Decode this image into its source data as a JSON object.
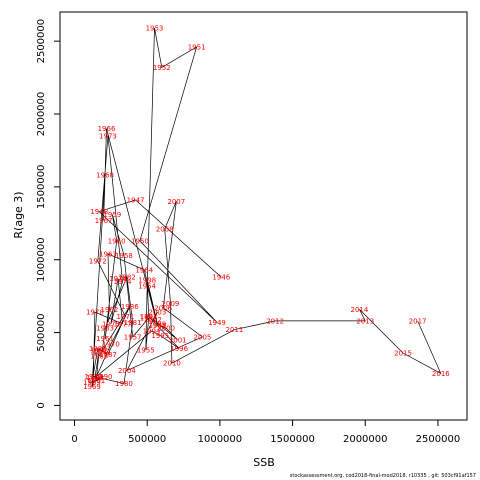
{
  "chart_data": {
    "type": "line",
    "xlabel": "SSB",
    "ylabel": "R(age 3)",
    "xlim": [
      -100000,
      2700000
    ],
    "ylim": [
      -100000,
      2700000
    ],
    "xticks": [
      0,
      500000,
      1000000,
      1500000,
      2000000,
      2500000
    ],
    "xtick_labels": [
      "0",
      "500000",
      "1000000",
      "1500000",
      "2000000",
      "2500000"
    ],
    "yticks": [
      0,
      500000,
      1000000,
      1500000,
      2000000,
      2500000
    ],
    "ytick_labels": [
      "0",
      "500000",
      "1000000",
      "1500000",
      "2000000",
      "2500000"
    ],
    "line_color": "#000000",
    "label_color": "#ff0000",
    "points": [
      {
        "year": "1946",
        "x": 1010000,
        "y": 880000
      },
      {
        "year": "1947",
        "x": 420000,
        "y": 1410000
      },
      {
        "year": "1948",
        "x": 170000,
        "y": 1330000
      },
      {
        "year": "1949",
        "x": 980000,
        "y": 570000
      },
      {
        "year": "1950",
        "x": 450000,
        "y": 1130000
      },
      {
        "year": "1951",
        "x": 840000,
        "y": 2460000
      },
      {
        "year": "1952",
        "x": 600000,
        "y": 2320000
      },
      {
        "year": "1953",
        "x": 550000,
        "y": 2590000
      },
      {
        "year": "1954",
        "x": 500000,
        "y": 820000
      },
      {
        "year": "1955",
        "x": 490000,
        "y": 380000
      },
      {
        "year": "1956",
        "x": 510000,
        "y": 600000
      },
      {
        "year": "1957",
        "x": 400000,
        "y": 470000
      },
      {
        "year": "1958",
        "x": 340000,
        "y": 1030000
      },
      {
        "year": "1959",
        "x": 260000,
        "y": 1310000
      },
      {
        "year": "1960",
        "x": 290000,
        "y": 1130000
      },
      {
        "year": "1961",
        "x": 210000,
        "y": 460000
      },
      {
        "year": "1962",
        "x": 240000,
        "y": 660000
      },
      {
        "year": "1963",
        "x": 230000,
        "y": 1040000
      },
      {
        "year": "1964",
        "x": 480000,
        "y": 930000
      },
      {
        "year": "1965",
        "x": 570000,
        "y": 550000
      },
      {
        "year": "1966",
        "x": 220000,
        "y": 1900000
      },
      {
        "year": "1967",
        "x": 200000,
        "y": 1270000
      },
      {
        "year": "1968",
        "x": 210000,
        "y": 1580000
      },
      {
        "year": "1969",
        "x": 120000,
        "y": 130000
      },
      {
        "year": "1970",
        "x": 250000,
        "y": 420000
      },
      {
        "year": "1971",
        "x": 350000,
        "y": 610000
      },
      {
        "year": "1972",
        "x": 160000,
        "y": 990000
      },
      {
        "year": "1973",
        "x": 230000,
        "y": 1850000
      },
      {
        "year": "1974",
        "x": 330000,
        "y": 850000
      },
      {
        "year": "1975",
        "x": 250000,
        "y": 560000
      },
      {
        "year": "1976",
        "x": 300000,
        "y": 870000
      },
      {
        "year": "1977",
        "x": 330000,
        "y": 560000
      },
      {
        "year": "1978",
        "x": 140000,
        "y": 640000
      },
      {
        "year": "1979",
        "x": 130000,
        "y": 200000
      },
      {
        "year": "1980",
        "x": 340000,
        "y": 150000
      },
      {
        "year": "1981",
        "x": 400000,
        "y": 570000
      },
      {
        "year": "1982",
        "x": 360000,
        "y": 880000
      },
      {
        "year": "1983",
        "x": 210000,
        "y": 530000
      },
      {
        "year": "1984",
        "x": 190000,
        "y": 370000
      },
      {
        "year": "1985",
        "x": 170000,
        "y": 340000
      },
      {
        "year": "1986",
        "x": 380000,
        "y": 680000
      },
      {
        "year": "1987",
        "x": 230000,
        "y": 350000
      },
      {
        "year": "1988",
        "x": 160000,
        "y": 390000
      },
      {
        "year": "1989",
        "x": 120000,
        "y": 160000
      },
      {
        "year": "1990",
        "x": 200000,
        "y": 200000
      },
      {
        "year": "1991",
        "x": 150000,
        "y": 170000
      },
      {
        "year": "1992",
        "x": 170000,
        "y": 380000
      },
      {
        "year": "1993",
        "x": 140000,
        "y": 190000
      },
      {
        "year": "1994",
        "x": 530000,
        "y": 510000
      },
      {
        "year": "1995",
        "x": 590000,
        "y": 480000
      },
      {
        "year": "1996",
        "x": 720000,
        "y": 390000
      },
      {
        "year": "1997",
        "x": 510000,
        "y": 610000
      },
      {
        "year": "1998",
        "x": 500000,
        "y": 860000
      },
      {
        "year": "1999",
        "x": 570000,
        "y": 560000
      },
      {
        "year": "2000",
        "x": 630000,
        "y": 530000
      },
      {
        "year": "2001",
        "x": 710000,
        "y": 450000
      },
      {
        "year": "2002",
        "x": 540000,
        "y": 590000
      },
      {
        "year": "2003",
        "x": 570000,
        "y": 640000
      },
      {
        "year": "2004",
        "x": 360000,
        "y": 240000
      },
      {
        "year": "2005",
        "x": 880000,
        "y": 470000
      },
      {
        "year": "2006",
        "x": 610000,
        "y": 670000
      },
      {
        "year": "2007",
        "x": 700000,
        "y": 1400000
      },
      {
        "year": "2008",
        "x": 620000,
        "y": 1210000
      },
      {
        "year": "2009",
        "x": 660000,
        "y": 700000
      },
      {
        "year": "2010",
        "x": 670000,
        "y": 290000
      },
      {
        "year": "2011",
        "x": 1100000,
        "y": 520000
      },
      {
        "year": "2012",
        "x": 1380000,
        "y": 580000
      },
      {
        "year": "2013",
        "x": 2000000,
        "y": 580000
      },
      {
        "year": "2014",
        "x": 1960000,
        "y": 660000
      },
      {
        "year": "2015",
        "x": 2260000,
        "y": 360000
      },
      {
        "year": "2016",
        "x": 2520000,
        "y": 220000
      },
      {
        "year": "2017",
        "x": 2360000,
        "y": 580000
      }
    ]
  },
  "footer_text": "stockassessment.org, cod2018-final-mod2018, r10335 , git: 503cf91af157"
}
